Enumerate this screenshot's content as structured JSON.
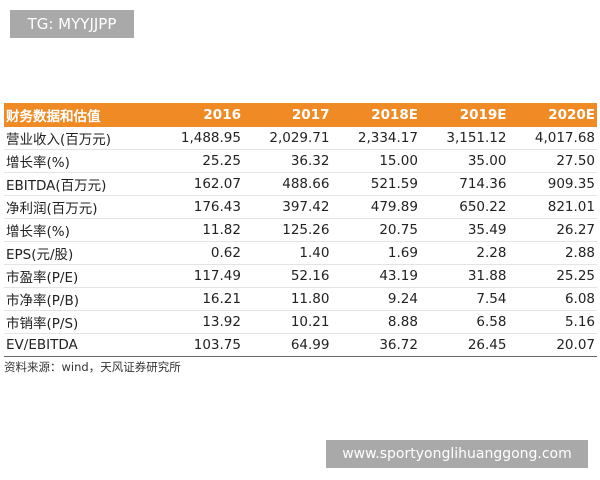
{
  "tag": "TG: MYYJJPP",
  "table": {
    "header": [
      "财务数据和估值",
      "2016",
      "2017",
      "2018E",
      "2019E",
      "2020E"
    ],
    "rows": [
      [
        "营业收入(百万元)",
        "1,488.95",
        "2,029.71",
        "2,334.17",
        "3,151.12",
        "4,017.68"
      ],
      [
        "增长率(%)",
        "25.25",
        "36.32",
        "15.00",
        "35.00",
        "27.50"
      ],
      [
        "EBITDA(百万元)",
        "162.07",
        "488.66",
        "521.59",
        "714.36",
        "909.35"
      ],
      [
        "净利润(百万元)",
        "176.43",
        "397.42",
        "479.89",
        "650.22",
        "821.01"
      ],
      [
        "增长率(%)",
        "11.82",
        "125.26",
        "20.75",
        "35.49",
        "26.27"
      ],
      [
        "EPS(元/股)",
        "0.62",
        "1.40",
        "1.69",
        "2.28",
        "2.88"
      ],
      [
        "市盈率(P/E)",
        "117.49",
        "52.16",
        "43.19",
        "31.88",
        "25.25"
      ],
      [
        "市净率(P/B)",
        "16.21",
        "11.80",
        "9.24",
        "7.54",
        "6.08"
      ],
      [
        "市销率(P/S)",
        "13.92",
        "10.21",
        "8.88",
        "6.58",
        "5.16"
      ],
      [
        "EV/EBITDA",
        "103.75",
        "64.99",
        "36.72",
        "26.45",
        "20.07"
      ]
    ]
  },
  "source": "资料来源：wind，天风证券研究所",
  "watermark": "www.sportyonglihuanggong.com"
}
